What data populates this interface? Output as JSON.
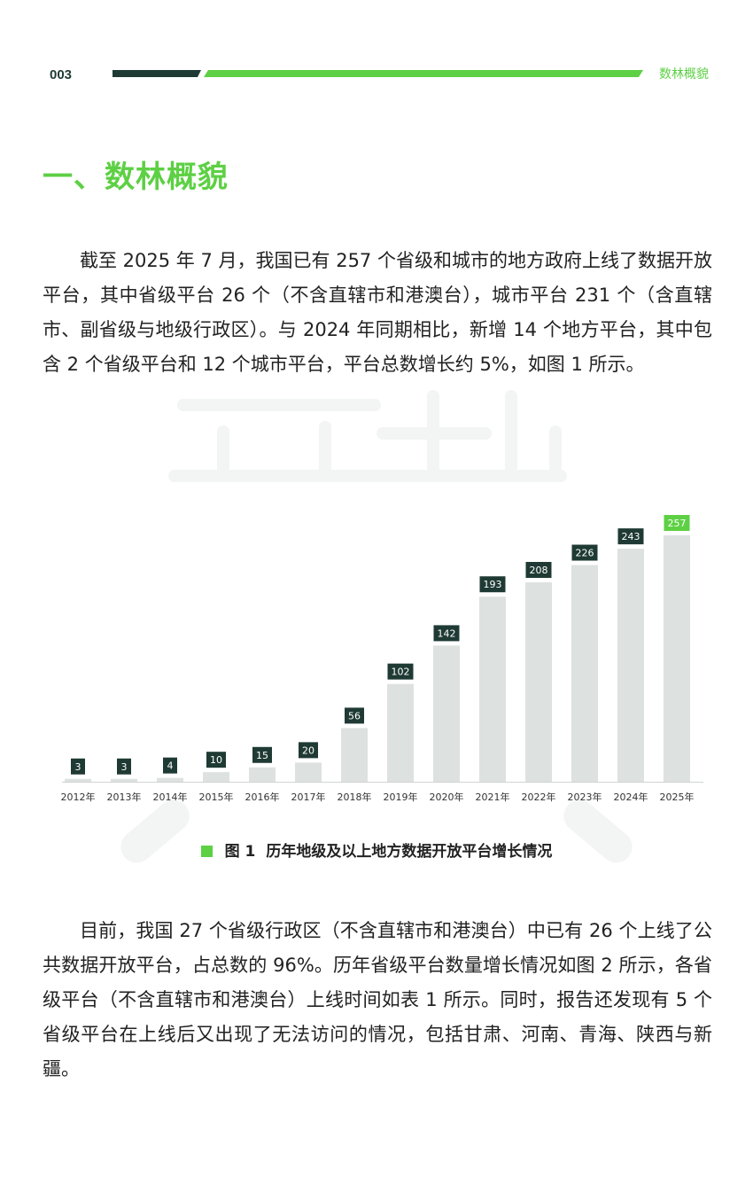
{
  "header": {
    "page_number": "003",
    "section_label": "数林概貌"
  },
  "section": {
    "title": "一、数林概貌"
  },
  "paragraphs": [
    "截至 2025 年 7 月，我国已有 257 个省级和城市的地方政府上线了数据开放平台，其中省级平台 26 个（不含直辖市和港澳台），城市平台 231 个（含直辖市、副省级与地级行政区）。与 2024 年同期相比，新增 14 个地方平台，其中包含 2 个省级平台和 12 个城市平台，平台总数增长约 5%，如图 1 所示。",
    "目前，我国 27 个省级行政区（不含直辖市和港澳台）中已有 26 个上线了公共数据开放平台，占总数的 96%。历年省级平台数量增长情况如图 2 所示，各省级平台（不含直辖市和港澳台）上线时间如表 1 所示。同时，报告还发现有 5 个省级平台在上线后又出现了无法访问的情况，包括甘肃、河南、青海、陕西与新疆。"
  ],
  "figure": {
    "number": "图 1",
    "caption": "历年地级及以上地方数据开放平台增长情况"
  },
  "colors": {
    "accent": "#5dd044",
    "dark": "#1f3a34",
    "bar": "#dde1e0"
  },
  "chart_data": {
    "type": "bar",
    "categories": [
      "2012年",
      "2013年",
      "2014年",
      "2015年",
      "2016年",
      "2017年",
      "2018年",
      "2019年",
      "2020年",
      "2021年",
      "2022年",
      "2023年",
      "2024年",
      "2025年"
    ],
    "values": [
      3,
      3,
      4,
      10,
      15,
      20,
      56,
      102,
      142,
      193,
      208,
      226,
      243,
      257
    ],
    "highlight": "2025年",
    "title": "",
    "xlabel": "",
    "ylabel": "",
    "ylim": [
      0,
      257
    ],
    "grid": false,
    "legend": "none"
  }
}
